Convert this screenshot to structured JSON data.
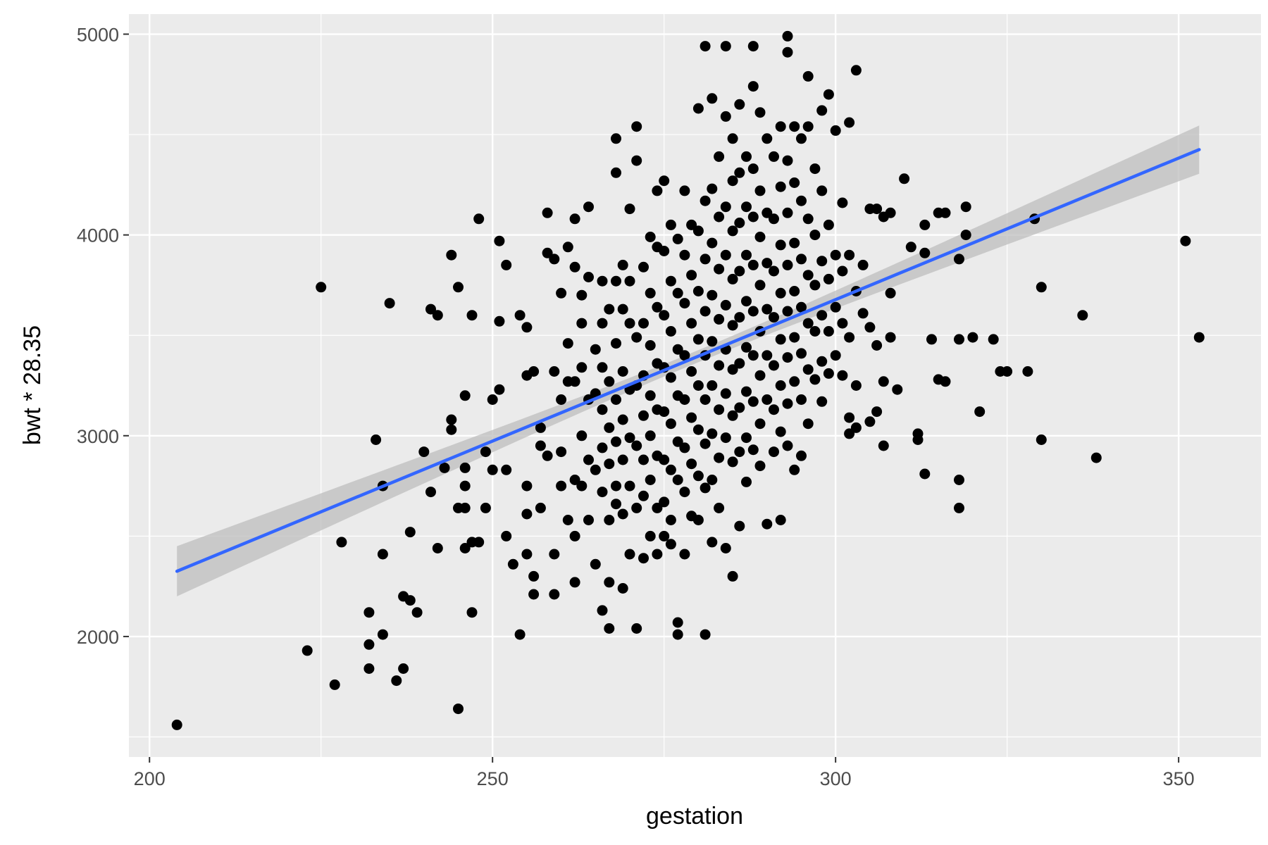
{
  "chart_data": {
    "type": "scatter",
    "title": "",
    "xlabel": "gestation",
    "ylabel": "bwt * 28.35",
    "xlim": [
      197,
      362
    ],
    "ylim": [
      1400,
      5100
    ],
    "x_ticks": [
      200,
      250,
      300,
      350
    ],
    "y_ticks": [
      2000,
      3000,
      4000,
      5000
    ],
    "x_tick_labels": [
      "200",
      "250",
      "300",
      "350"
    ],
    "y_tick_labels": [
      "2000",
      "3000",
      "4000",
      "5000"
    ],
    "grid": true,
    "legend": "none",
    "panel_background": "#ebebeb",
    "point_color": "#000000",
    "fit_line": {
      "method": "lm",
      "color": "#3366ff",
      "ribbon_color": "#bdbdbd",
      "start": [
        204,
        2325
      ],
      "end": [
        353,
        4425
      ],
      "ribbon_halfwidth_at_start": 125,
      "ribbon_halfwidth_at_end": 120,
      "ribbon_halfwidth_min": 30,
      "x_at_min_halfwidth": 279
    },
    "points": [
      [
        204,
        1560
      ],
      [
        223,
        1930
      ],
      [
        225,
        3740
      ],
      [
        227,
        1760
      ],
      [
        228,
        2470
      ],
      [
        232,
        2120
      ],
      [
        232,
        1960
      ],
      [
        232,
        1840
      ],
      [
        233,
        2980
      ],
      [
        234,
        2750
      ],
      [
        234,
        2410
      ],
      [
        234,
        2010
      ],
      [
        235,
        3660
      ],
      [
        236,
        1780
      ],
      [
        237,
        2200
      ],
      [
        237,
        1840
      ],
      [
        238,
        2180
      ],
      [
        238,
        2520
      ],
      [
        239,
        2120
      ],
      [
        240,
        2920
      ],
      [
        241,
        2720
      ],
      [
        241,
        3630
      ],
      [
        242,
        3600
      ],
      [
        242,
        2440
      ],
      [
        243,
        2840
      ],
      [
        244,
        3900
      ],
      [
        244,
        3080
      ],
      [
        244,
        3030
      ],
      [
        245,
        3740
      ],
      [
        245,
        2640
      ],
      [
        245,
        1640
      ],
      [
        246,
        3200
      ],
      [
        246,
        2840
      ],
      [
        246,
        2750
      ],
      [
        246,
        2440
      ],
      [
        246,
        2640
      ],
      [
        247,
        2120
      ],
      [
        247,
        3600
      ],
      [
        247,
        2470
      ],
      [
        248,
        4080
      ],
      [
        248,
        2470
      ],
      [
        249,
        2920
      ],
      [
        249,
        2640
      ],
      [
        250,
        2830
      ],
      [
        250,
        3180
      ],
      [
        251,
        3970
      ],
      [
        251,
        3570
      ],
      [
        251,
        3230
      ],
      [
        252,
        3850
      ],
      [
        252,
        2830
      ],
      [
        252,
        2500
      ],
      [
        253,
        2360
      ],
      [
        254,
        3600
      ],
      [
        254,
        2010
      ],
      [
        255,
        3540
      ],
      [
        255,
        3300
      ],
      [
        255,
        2750
      ],
      [
        255,
        2610
      ],
      [
        255,
        2410
      ],
      [
        256,
        3320
      ],
      [
        256,
        2300
      ],
      [
        256,
        2210
      ],
      [
        257,
        3040
      ],
      [
        257,
        2950
      ],
      [
        257,
        2640
      ],
      [
        258,
        4110
      ],
      [
        258,
        3910
      ],
      [
        258,
        2900
      ],
      [
        259,
        3880
      ],
      [
        259,
        3320
      ],
      [
        259,
        2410
      ],
      [
        259,
        2210
      ],
      [
        260,
        3710
      ],
      [
        260,
        3180
      ],
      [
        260,
        2920
      ],
      [
        260,
        2750
      ],
      [
        261,
        3940
      ],
      [
        261,
        3460
      ],
      [
        261,
        3270
      ],
      [
        261,
        2580
      ],
      [
        262,
        4080
      ],
      [
        262,
        3840
      ],
      [
        262,
        3270
      ],
      [
        262,
        2780
      ],
      [
        262,
        2500
      ],
      [
        262,
        2270
      ],
      [
        263,
        3700
      ],
      [
        263,
        3560
      ],
      [
        263,
        3340
      ],
      [
        263,
        3000
      ],
      [
        263,
        2750
      ],
      [
        264,
        4140
      ],
      [
        264,
        3790
      ],
      [
        264,
        3180
      ],
      [
        264,
        2880
      ],
      [
        264,
        2580
      ],
      [
        265,
        3430
      ],
      [
        265,
        3210
      ],
      [
        265,
        2830
      ],
      [
        265,
        2360
      ],
      [
        266,
        3770
      ],
      [
        266,
        3560
      ],
      [
        266,
        3340
      ],
      [
        266,
        3130
      ],
      [
        266,
        2940
      ],
      [
        266,
        2720
      ],
      [
        266,
        2130
      ],
      [
        267,
        3630
      ],
      [
        267,
        3270
      ],
      [
        267,
        3040
      ],
      [
        267,
        2860
      ],
      [
        267,
        2580
      ],
      [
        267,
        2270
      ],
      [
        267,
        2040
      ],
      [
        268,
        4480
      ],
      [
        268,
        4310
      ],
      [
        268,
        3770
      ],
      [
        268,
        3460
      ],
      [
        268,
        3180
      ],
      [
        268,
        2970
      ],
      [
        268,
        2750
      ],
      [
        268,
        2660
      ],
      [
        269,
        3850
      ],
      [
        269,
        3630
      ],
      [
        269,
        3320
      ],
      [
        269,
        3080
      ],
      [
        269,
        2880
      ],
      [
        269,
        2610
      ],
      [
        269,
        2240
      ],
      [
        270,
        4130
      ],
      [
        270,
        3770
      ],
      [
        270,
        3560
      ],
      [
        270,
        3230
      ],
      [
        270,
        2990
      ],
      [
        270,
        2750
      ],
      [
        270,
        2410
      ],
      [
        271,
        4540
      ],
      [
        271,
        4370
      ],
      [
        271,
        3490
      ],
      [
        271,
        3250
      ],
      [
        271,
        2950
      ],
      [
        271,
        2640
      ],
      [
        271,
        2040
      ],
      [
        272,
        3840
      ],
      [
        272,
        3560
      ],
      [
        272,
        3300
      ],
      [
        272,
        3100
      ],
      [
        272,
        2880
      ],
      [
        272,
        2700
      ],
      [
        272,
        2390
      ],
      [
        273,
        3990
      ],
      [
        273,
        3710
      ],
      [
        273,
        3450
      ],
      [
        273,
        3200
      ],
      [
        273,
        3000
      ],
      [
        273,
        2780
      ],
      [
        273,
        2500
      ],
      [
        274,
        4220
      ],
      [
        274,
        3940
      ],
      [
        274,
        3640
      ],
      [
        274,
        3360
      ],
      [
        274,
        3130
      ],
      [
        274,
        2900
      ],
      [
        274,
        2640
      ],
      [
        274,
        2410
      ],
      [
        275,
        4270
      ],
      [
        275,
        3920
      ],
      [
        275,
        3600
      ],
      [
        275,
        3340
      ],
      [
        275,
        3120
      ],
      [
        275,
        2880
      ],
      [
        275,
        2670
      ],
      [
        275,
        2500
      ],
      [
        276,
        4050
      ],
      [
        276,
        3770
      ],
      [
        276,
        3520
      ],
      [
        276,
        3290
      ],
      [
        276,
        3060
      ],
      [
        276,
        2830
      ],
      [
        276,
        2580
      ],
      [
        276,
        2460
      ],
      [
        277,
        3980
      ],
      [
        277,
        3710
      ],
      [
        277,
        3430
      ],
      [
        277,
        3200
      ],
      [
        277,
        2970
      ],
      [
        277,
        2780
      ],
      [
        277,
        2070
      ],
      [
        277,
        2010
      ],
      [
        278,
        4220
      ],
      [
        278,
        3900
      ],
      [
        278,
        3660
      ],
      [
        278,
        3400
      ],
      [
        278,
        3180
      ],
      [
        278,
        2940
      ],
      [
        278,
        2720
      ],
      [
        278,
        2410
      ],
      [
        279,
        4050
      ],
      [
        279,
        3800
      ],
      [
        279,
        3560
      ],
      [
        279,
        3320
      ],
      [
        279,
        3090
      ],
      [
        279,
        2860
      ],
      [
        279,
        2600
      ],
      [
        280,
        4630
      ],
      [
        280,
        4020
      ],
      [
        280,
        3720
      ],
      [
        280,
        3480
      ],
      [
        280,
        3250
      ],
      [
        280,
        3030
      ],
      [
        280,
        2800
      ],
      [
        280,
        2580
      ],
      [
        281,
        4940
      ],
      [
        281,
        4170
      ],
      [
        281,
        3880
      ],
      [
        281,
        3620
      ],
      [
        281,
        3400
      ],
      [
        281,
        3180
      ],
      [
        281,
        2960
      ],
      [
        281,
        2740
      ],
      [
        281,
        2010
      ],
      [
        282,
        4680
      ],
      [
        282,
        4230
      ],
      [
        282,
        3960
      ],
      [
        282,
        3700
      ],
      [
        282,
        3470
      ],
      [
        282,
        3250
      ],
      [
        282,
        3010
      ],
      [
        282,
        2780
      ],
      [
        282,
        2470
      ],
      [
        283,
        4390
      ],
      [
        283,
        4090
      ],
      [
        283,
        3830
      ],
      [
        283,
        3580
      ],
      [
        283,
        3350
      ],
      [
        283,
        3130
      ],
      [
        283,
        2890
      ],
      [
        283,
        2640
      ],
      [
        284,
        4940
      ],
      [
        284,
        4590
      ],
      [
        284,
        4140
      ],
      [
        284,
        3900
      ],
      [
        284,
        3650
      ],
      [
        284,
        3430
      ],
      [
        284,
        3210
      ],
      [
        284,
        2990
      ],
      [
        284,
        2440
      ],
      [
        285,
        4480
      ],
      [
        285,
        4270
      ],
      [
        285,
        4020
      ],
      [
        285,
        3780
      ],
      [
        285,
        3550
      ],
      [
        285,
        3330
      ],
      [
        285,
        3100
      ],
      [
        285,
        2870
      ],
      [
        285,
        2300
      ],
      [
        286,
        4650
      ],
      [
        286,
        4310
      ],
      [
        286,
        4060
      ],
      [
        286,
        3820
      ],
      [
        286,
        3590
      ],
      [
        286,
        3360
      ],
      [
        286,
        3140
      ],
      [
        286,
        2920
      ],
      [
        286,
        2550
      ],
      [
        287,
        4390
      ],
      [
        287,
        4140
      ],
      [
        287,
        3900
      ],
      [
        287,
        3670
      ],
      [
        287,
        3440
      ],
      [
        287,
        3220
      ],
      [
        287,
        2990
      ],
      [
        287,
        2770
      ],
      [
        288,
        4940
      ],
      [
        288,
        4740
      ],
      [
        288,
        4330
      ],
      [
        288,
        4090
      ],
      [
        288,
        3850
      ],
      [
        288,
        3620
      ],
      [
        288,
        3400
      ],
      [
        288,
        3170
      ],
      [
        288,
        2930
      ],
      [
        289,
        4610
      ],
      [
        289,
        4220
      ],
      [
        289,
        3990
      ],
      [
        289,
        3750
      ],
      [
        289,
        3520
      ],
      [
        289,
        3300
      ],
      [
        289,
        3060
      ],
      [
        289,
        2850
      ],
      [
        290,
        4480
      ],
      [
        290,
        4110
      ],
      [
        290,
        3860
      ],
      [
        290,
        3630
      ],
      [
        290,
        3400
      ],
      [
        290,
        3180
      ],
      [
        290,
        2560
      ],
      [
        291,
        4390
      ],
      [
        291,
        4080
      ],
      [
        291,
        3820
      ],
      [
        291,
        3590
      ],
      [
        291,
        3350
      ],
      [
        291,
        3130
      ],
      [
        291,
        2920
      ],
      [
        292,
        4540
      ],
      [
        292,
        4240
      ],
      [
        292,
        3950
      ],
      [
        292,
        3710
      ],
      [
        292,
        3480
      ],
      [
        292,
        3250
      ],
      [
        292,
        3020
      ],
      [
        292,
        2580
      ],
      [
        293,
        4990
      ],
      [
        293,
        4910
      ],
      [
        293,
        4370
      ],
      [
        293,
        4110
      ],
      [
        293,
        3850
      ],
      [
        293,
        3620
      ],
      [
        293,
        3390
      ],
      [
        293,
        3160
      ],
      [
        293,
        2950
      ],
      [
        294,
        4540
      ],
      [
        294,
        4260
      ],
      [
        294,
        3960
      ],
      [
        294,
        3720
      ],
      [
        294,
        3490
      ],
      [
        294,
        3270
      ],
      [
        294,
        2830
      ],
      [
        295,
        4480
      ],
      [
        295,
        4170
      ],
      [
        295,
        3880
      ],
      [
        295,
        3640
      ],
      [
        295,
        3410
      ],
      [
        295,
        3180
      ],
      [
        295,
        2900
      ],
      [
        296,
        4790
      ],
      [
        296,
        4540
      ],
      [
        296,
        4080
      ],
      [
        296,
        3800
      ],
      [
        296,
        3560
      ],
      [
        296,
        3330
      ],
      [
        296,
        3060
      ],
      [
        297,
        4330
      ],
      [
        297,
        4000
      ],
      [
        297,
        3750
      ],
      [
        297,
        3520
      ],
      [
        297,
        3280
      ],
      [
        298,
        4620
      ],
      [
        298,
        4220
      ],
      [
        298,
        3870
      ],
      [
        298,
        3600
      ],
      [
        298,
        3370
      ],
      [
        298,
        3170
      ],
      [
        299,
        4700
      ],
      [
        299,
        4050
      ],
      [
        299,
        3780
      ],
      [
        299,
        3520
      ],
      [
        299,
        3310
      ],
      [
        300,
        4520
      ],
      [
        300,
        3900
      ],
      [
        300,
        3640
      ],
      [
        300,
        3400
      ],
      [
        301,
        4160
      ],
      [
        301,
        3820
      ],
      [
        301,
        3560
      ],
      [
        301,
        3300
      ],
      [
        302,
        4560
      ],
      [
        302,
        3900
      ],
      [
        302,
        3490
      ],
      [
        302,
        3090
      ],
      [
        302,
        3010
      ],
      [
        303,
        4820
      ],
      [
        303,
        3720
      ],
      [
        303,
        3250
      ],
      [
        303,
        3040
      ],
      [
        304,
        3850
      ],
      [
        304,
        3610
      ],
      [
        305,
        4130
      ],
      [
        305,
        3540
      ],
      [
        305,
        3070
      ],
      [
        306,
        4130
      ],
      [
        306,
        3450
      ],
      [
        306,
        3120
      ],
      [
        307,
        4090
      ],
      [
        307,
        3270
      ],
      [
        307,
        2950
      ],
      [
        308,
        4110
      ],
      [
        308,
        3710
      ],
      [
        308,
        3490
      ],
      [
        309,
        3230
      ],
      [
        310,
        4280
      ],
      [
        311,
        3940
      ],
      [
        312,
        3010
      ],
      [
        312,
        2980
      ],
      [
        313,
        4050
      ],
      [
        313,
        3910
      ],
      [
        313,
        2810
      ],
      [
        314,
        3480
      ],
      [
        315,
        4110
      ],
      [
        315,
        3280
      ],
      [
        316,
        4110
      ],
      [
        316,
        3270
      ],
      [
        318,
        3880
      ],
      [
        318,
        3480
      ],
      [
        318,
        2780
      ],
      [
        318,
        2640
      ],
      [
        319,
        4140
      ],
      [
        319,
        4000
      ],
      [
        320,
        3490
      ],
      [
        321,
        3120
      ],
      [
        323,
        3480
      ],
      [
        324,
        3320
      ],
      [
        325,
        3320
      ],
      [
        328,
        3320
      ],
      [
        329,
        4080
      ],
      [
        330,
        3740
      ],
      [
        330,
        2980
      ],
      [
        336,
        3600
      ],
      [
        338,
        2890
      ],
      [
        351,
        3970
      ],
      [
        353,
        3490
      ]
    ]
  }
}
